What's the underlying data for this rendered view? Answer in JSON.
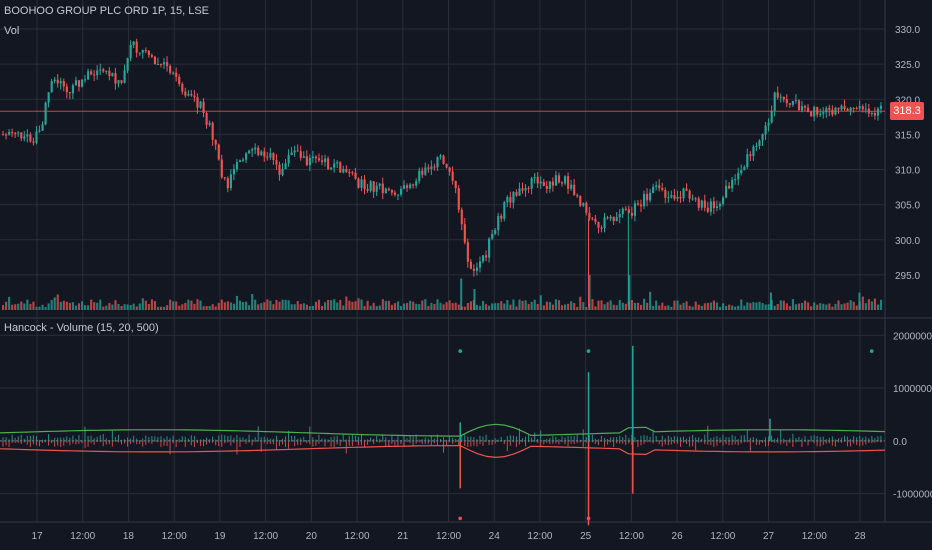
{
  "symbol_title": "BOOHOO GROUP PLC ORD 1P, 15, LSE",
  "volume_label": "Vol",
  "indicator_title": "Hancock - Volume (15, 20, 500)",
  "last_price_badge": "318.3",
  "colors": {
    "background": "#131722",
    "grid": "#2a2e39",
    "up": "#26a69a",
    "down": "#ef5350",
    "price_line": "#ef5350",
    "text": "#b2b5be",
    "green_line": "#4caf50",
    "red_line": "#ef5350"
  },
  "chart_data": [
    {
      "type": "candlestick",
      "title": "BOOHOO GROUP PLC ORD 1P, 15, LSE",
      "ylim": [
        290.0,
        332.0
      ],
      "y_ticks": [
        "330.0",
        "325.0",
        "320.0",
        "315.0",
        "310.0",
        "305.0",
        "300.0",
        "295.0"
      ],
      "x_ticks": [
        "17",
        "12:00",
        "18",
        "12:00",
        "19",
        "12:00",
        "20",
        "12:00",
        "21",
        "12:00",
        "24",
        "12:00",
        "25",
        "12:00",
        "26",
        "12:00",
        "27",
        "12:00",
        "28"
      ],
      "last_price": 318.3,
      "price_path": [
        [
          0.0,
          315.0
        ],
        [
          0.015,
          315.5
        ],
        [
          0.035,
          314.0
        ],
        [
          0.045,
          317.0
        ],
        [
          0.055,
          323.0
        ],
        [
          0.065,
          322.0
        ],
        [
          0.075,
          321.0
        ],
        [
          0.09,
          323.0
        ],
        [
          0.11,
          324.5
        ],
        [
          0.125,
          323.5
        ],
        [
          0.135,
          322.0
        ],
        [
          0.145,
          328.0
        ],
        [
          0.16,
          326.5
        ],
        [
          0.175,
          325.5
        ],
        [
          0.19,
          324.0
        ],
        [
          0.205,
          321.5
        ],
        [
          0.225,
          319.0
        ],
        [
          0.238,
          315.5
        ],
        [
          0.245,
          311.0
        ],
        [
          0.255,
          307.5
        ],
        [
          0.265,
          311.5
        ],
        [
          0.28,
          312.5
        ],
        [
          0.3,
          312.5
        ],
        [
          0.315,
          310.0
        ],
        [
          0.33,
          312.5
        ],
        [
          0.345,
          311.0
        ],
        [
          0.36,
          311.5
        ],
        [
          0.375,
          310.5
        ],
        [
          0.39,
          310.0
        ],
        [
          0.405,
          308.0
        ],
        [
          0.425,
          307.5
        ],
        [
          0.44,
          306.5
        ],
        [
          0.455,
          307.0
        ],
        [
          0.47,
          308.5
        ],
        [
          0.485,
          310.5
        ],
        [
          0.5,
          311.5
        ],
        [
          0.51,
          309.0
        ],
        [
          0.518,
          305.5
        ],
        [
          0.524,
          300.5
        ],
        [
          0.53,
          296.5
        ],
        [
          0.54,
          296.0
        ],
        [
          0.55,
          298.0
        ],
        [
          0.56,
          302.0
        ],
        [
          0.575,
          305.5
        ],
        [
          0.59,
          307.5
        ],
        [
          0.605,
          308.5
        ],
        [
          0.62,
          308.0
        ],
        [
          0.635,
          309.0
        ],
        [
          0.65,
          307.0
        ],
        [
          0.665,
          304.0
        ],
        [
          0.68,
          302.0
        ],
        [
          0.7,
          303.5
        ],
        [
          0.715,
          304.0
        ],
        [
          0.73,
          306.0
        ],
        [
          0.745,
          307.5
        ],
        [
          0.76,
          305.5
        ],
        [
          0.775,
          306.5
        ],
        [
          0.79,
          305.5
        ],
        [
          0.8,
          304.5
        ],
        [
          0.815,
          305.5
        ],
        [
          0.83,
          308.0
        ],
        [
          0.845,
          311.0
        ],
        [
          0.86,
          313.5
        ],
        [
          0.872,
          316.5
        ],
        [
          0.878,
          321.0
        ],
        [
          0.89,
          320.5
        ],
        [
          0.905,
          319.0
        ],
        [
          0.915,
          318.5
        ],
        [
          0.93,
          318.0
        ],
        [
          0.945,
          318.3
        ],
        [
          0.96,
          319.0
        ],
        [
          0.975,
          318.5
        ],
        [
          1.0,
          318.3
        ]
      ],
      "volume_spikes": [
        {
          "x": 0.52,
          "v": 0.9
        },
        {
          "x": 0.535,
          "v": 0.6
        },
        {
          "x": 0.665,
          "v": 1.0
        },
        {
          "x": 0.71,
          "v": 1.0
        },
        {
          "x": 0.87,
          "v": 0.5
        },
        {
          "x": 0.97,
          "v": 0.5
        }
      ]
    },
    {
      "type": "histogram",
      "title": "Hancock - Volume (15, 20, 500)",
      "ylim": [
        -1500000.0,
        2100000.0
      ],
      "y_ticks": [
        "2000000.0",
        "1000000.0",
        "0.0",
        "-1000000.0"
      ],
      "spikes": [
        {
          "x": 0.52,
          "v": 350000
        },
        {
          "x": 0.52,
          "v": -900000
        },
        {
          "x": 0.665,
          "v": 1300000
        },
        {
          "x": 0.665,
          "v": -1600000
        },
        {
          "x": 0.715,
          "v": 1800000
        },
        {
          "x": 0.715,
          "v": -1000000
        },
        {
          "x": 0.87,
          "v": 420000
        }
      ],
      "dots": [
        {
          "x": 0.52,
          "v": 1700000,
          "color": "up"
        },
        {
          "x": 0.665,
          "v": 1700000,
          "color": "up"
        },
        {
          "x": 0.985,
          "v": 1700000,
          "color": "up"
        },
        {
          "x": 0.52,
          "v": -1470000,
          "color": "down"
        },
        {
          "x": 0.665,
          "v": -1470000,
          "color": "down"
        }
      ]
    }
  ]
}
